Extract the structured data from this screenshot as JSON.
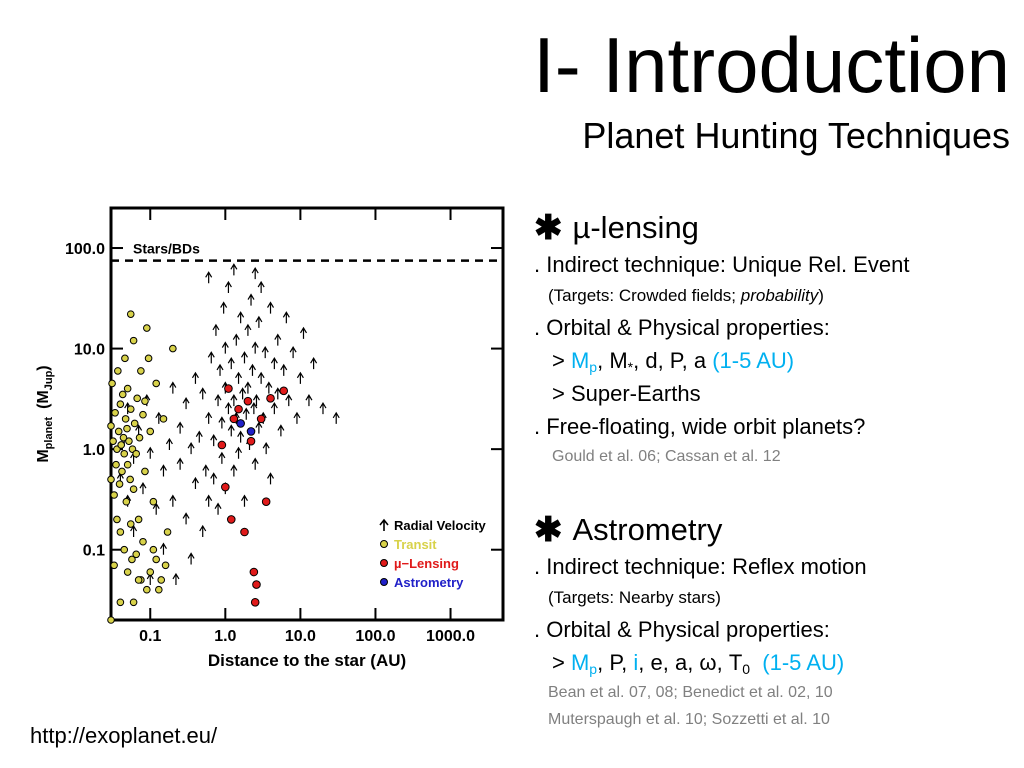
{
  "slide": {
    "title": "I- Introduction",
    "subtitle": "Planet Hunting Techniques",
    "url": "http://exoplanet.eu/"
  },
  "sections": {
    "lensing": {
      "heading": "µ-lensing",
      "l1": ". Indirect technique: Unique Rel. Event",
      "l2_pre": "(Targets: Crowded fields; ",
      "l2_em": "probability",
      "l2_post": ")",
      "l3": ". Orbital & Physical properties:",
      "l4_gt": "> ",
      "l4_m": "M",
      "l4_p": "p",
      "l4_mid": ", M",
      "l4_star": "*",
      "l4_rest": ", d, P, a ",
      "l4_range": "(1-5 AU)",
      "l5": "> Super-Earths",
      "l6": ". Free-floating, wide orbit planets?",
      "ref": "Gould et al. 06; Cassan et al. 12"
    },
    "astrometry": {
      "heading": "Astrometry",
      "l1": ". Indirect technique: Reflex motion",
      "l2": "(Targets: Nearby stars)",
      "l3": ". Orbital & Physical properties:",
      "l4_gt": "> ",
      "l4_m": "M",
      "l4_p": "p",
      "l4_c1": ", P, ",
      "l4_i": "i",
      "l4_c2": ", e, a, ω, T",
      "l4_0": "0",
      "l4_range": "(1-5 AU)",
      "ref1": "Bean et al. 07, 08; Benedict et al. 02, 10",
      "ref2": "Muterspaugh et al. 10; Sozzetti et al. 10"
    }
  },
  "chart_data": {
    "type": "scatter",
    "xlabel": "Distance to the star (AU)",
    "ylabel": "M_planet (M_Jup)",
    "ylabel_main": "M",
    "ylabel_sub": "planet",
    "ylabel_unit": "(M",
    "ylabel_unit_sub": "Jup",
    "ylabel_close": ")",
    "x_scale": "log",
    "y_scale": "log",
    "xlim": [
      0.03,
      5000
    ],
    "ylim": [
      0.02,
      250
    ],
    "x_ticks": [
      {
        "v": 0.1,
        "label": "0.1"
      },
      {
        "v": 1,
        "label": "1.0"
      },
      {
        "v": 10,
        "label": "10.0"
      },
      {
        "v": 100,
        "label": "100.0"
      },
      {
        "v": 1000,
        "label": "1000.0"
      }
    ],
    "y_ticks": [
      {
        "v": 0.1,
        "label": "0.1"
      },
      {
        "v": 1,
        "label": "1.0"
      },
      {
        "v": 10,
        "label": "10.0"
      },
      {
        "v": 100,
        "label": "100.0"
      }
    ],
    "reference_line": {
      "y": 75,
      "label": "Stars/BDs"
    },
    "legend_position": "bottom-right",
    "series": [
      {
        "name": "Radial Velocity",
        "marker": "arrow",
        "color": "#000000",
        "points": [
          [
            0.04,
            0.5
          ],
          [
            0.045,
            1.2
          ],
          [
            0.05,
            0.3
          ],
          [
            0.05,
            2.5
          ],
          [
            0.06,
            0.8
          ],
          [
            0.06,
            0.15
          ],
          [
            0.07,
            1.5
          ],
          [
            0.08,
            0.4
          ],
          [
            0.09,
            3
          ],
          [
            0.1,
            0.9
          ],
          [
            0.1,
            0.05
          ],
          [
            0.12,
            0.25
          ],
          [
            0.13,
            2
          ],
          [
            0.15,
            0.6
          ],
          [
            0.15,
            0.1
          ],
          [
            0.18,
            1.1
          ],
          [
            0.2,
            0.3
          ],
          [
            0.2,
            4
          ],
          [
            0.22,
            0.05
          ],
          [
            0.25,
            1.6
          ],
          [
            0.25,
            0.7
          ],
          [
            0.3,
            0.2
          ],
          [
            0.3,
            2.8
          ],
          [
            0.35,
            1
          ],
          [
            0.35,
            0.08
          ],
          [
            0.4,
            0.45
          ],
          [
            0.4,
            5
          ],
          [
            0.45,
            1.3
          ],
          [
            0.5,
            0.15
          ],
          [
            0.5,
            3.5
          ],
          [
            0.55,
            0.6
          ],
          [
            0.6,
            2
          ],
          [
            0.6,
            0.3
          ],
          [
            0.65,
            8
          ],
          [
            0.7,
            1.2
          ],
          [
            0.7,
            0.5
          ],
          [
            0.75,
            15
          ],
          [
            0.8,
            3
          ],
          [
            0.8,
            0.25
          ],
          [
            0.85,
            6
          ],
          [
            0.9,
            1.8
          ],
          [
            0.9,
            0.8
          ],
          [
            0.95,
            25
          ],
          [
            1.0,
            4
          ],
          [
            1.0,
            0.4
          ],
          [
            1.0,
            10
          ],
          [
            1.1,
            2.5
          ],
          [
            1.1,
            40
          ],
          [
            1.2,
            1.5
          ],
          [
            1.2,
            7
          ],
          [
            1.3,
            3
          ],
          [
            1.3,
            0.6
          ],
          [
            1.4,
            12
          ],
          [
            1.4,
            2
          ],
          [
            1.5,
            5
          ],
          [
            1.5,
            0.9
          ],
          [
            1.6,
            20
          ],
          [
            1.6,
            1.3
          ],
          [
            1.7,
            3.5
          ],
          [
            1.8,
            8
          ],
          [
            1.8,
            0.3
          ],
          [
            1.9,
            2.2
          ],
          [
            2.0,
            15
          ],
          [
            2.0,
            4
          ],
          [
            2.1,
            1.1
          ],
          [
            2.2,
            30
          ],
          [
            2.3,
            6
          ],
          [
            2.4,
            2.5
          ],
          [
            2.5,
            10
          ],
          [
            2.5,
            0.7
          ],
          [
            2.6,
            3
          ],
          [
            2.8,
            18
          ],
          [
            2.8,
            1.6
          ],
          [
            3.0,
            5
          ],
          [
            3.0,
            40
          ],
          [
            3.2,
            2
          ],
          [
            3.4,
            9
          ],
          [
            3.5,
            1
          ],
          [
            3.8,
            4
          ],
          [
            4.0,
            25
          ],
          [
            4.0,
            0.5
          ],
          [
            4.5,
            7
          ],
          [
            4.5,
            2.5
          ],
          [
            5.0,
            12
          ],
          [
            5.0,
            3.5
          ],
          [
            5.5,
            1.5
          ],
          [
            6.0,
            6
          ],
          [
            6.5,
            20
          ],
          [
            7.0,
            3
          ],
          [
            8.0,
            9
          ],
          [
            9.0,
            2
          ],
          [
            10.0,
            5
          ],
          [
            11.0,
            14
          ],
          [
            13.0,
            3
          ],
          [
            15.0,
            7
          ],
          [
            20.0,
            2.5
          ],
          [
            30.0,
            2
          ],
          [
            1.3,
            60
          ],
          [
            0.6,
            50
          ],
          [
            2.5,
            55
          ]
        ]
      },
      {
        "name": "Transit",
        "marker": "circle",
        "color": "#d8d24a",
        "points": [
          [
            0.02,
            0.6
          ],
          [
            0.022,
            1.1
          ],
          [
            0.023,
            0.4
          ],
          [
            0.024,
            2.0
          ],
          [
            0.025,
            0.8
          ],
          [
            0.026,
            1.4
          ],
          [
            0.027,
            0.25
          ],
          [
            0.028,
            3.0
          ],
          [
            0.029,
            0.9
          ],
          [
            0.03,
            1.7
          ],
          [
            0.03,
            0.5
          ],
          [
            0.031,
            4.5
          ],
          [
            0.032,
            1.2
          ],
          [
            0.033,
            0.35
          ],
          [
            0.034,
            2.3
          ],
          [
            0.035,
            0.7
          ],
          [
            0.036,
            1.0
          ],
          [
            0.037,
            6.0
          ],
          [
            0.038,
            1.5
          ],
          [
            0.039,
            0.45
          ],
          [
            0.04,
            2.8
          ],
          [
            0.04,
            0.15
          ],
          [
            0.041,
            1.1
          ],
          [
            0.042,
            0.6
          ],
          [
            0.043,
            3.5
          ],
          [
            0.044,
            1.3
          ],
          [
            0.045,
            0.9
          ],
          [
            0.046,
            8.0
          ],
          [
            0.047,
            2.0
          ],
          [
            0.048,
            0.3
          ],
          [
            0.049,
            1.6
          ],
          [
            0.05,
            0.7
          ],
          [
            0.05,
            4.0
          ],
          [
            0.052,
            1.2
          ],
          [
            0.054,
            0.5
          ],
          [
            0.055,
            2.5
          ],
          [
            0.057,
            0.08
          ],
          [
            0.058,
            1.0
          ],
          [
            0.06,
            12.0
          ],
          [
            0.06,
            0.4
          ],
          [
            0.062,
            1.8
          ],
          [
            0.065,
            0.9
          ],
          [
            0.067,
            3.2
          ],
          [
            0.07,
            0.2
          ],
          [
            0.072,
            1.3
          ],
          [
            0.075,
            0.05
          ],
          [
            0.08,
            2.2
          ],
          [
            0.085,
            0.6
          ],
          [
            0.09,
            16.0
          ],
          [
            0.1,
            1.5
          ],
          [
            0.11,
            0.1
          ],
          [
            0.12,
            4.5
          ],
          [
            0.13,
            0.04
          ],
          [
            0.15,
            2.0
          ],
          [
            0.17,
            0.15
          ],
          [
            0.2,
            10.0
          ],
          [
            0.022,
            0.05
          ],
          [
            0.025,
            0.03
          ],
          [
            0.028,
            0.12
          ],
          [
            0.033,
            0.07
          ],
          [
            0.036,
            0.2
          ],
          [
            0.04,
            0.03
          ],
          [
            0.045,
            0.1
          ],
          [
            0.05,
            0.06
          ],
          [
            0.055,
            0.18
          ],
          [
            0.06,
            0.03
          ],
          [
            0.065,
            0.09
          ],
          [
            0.07,
            0.05
          ],
          [
            0.08,
            0.12
          ],
          [
            0.09,
            0.04
          ],
          [
            0.1,
            0.06
          ],
          [
            0.12,
            0.08
          ],
          [
            0.14,
            0.05
          ],
          [
            0.16,
            0.07
          ],
          [
            0.055,
            22.0
          ],
          [
            0.075,
            6.0
          ],
          [
            0.095,
            8.0
          ],
          [
            0.03,
            0.02
          ],
          [
            0.11,
            0.3
          ],
          [
            0.085,
            3.0
          ]
        ]
      },
      {
        "name": "µ−Lensing",
        "marker": "circle",
        "color": "#e01a1a",
        "points": [
          [
            0.9,
            1.1
          ],
          [
            1.0,
            0.42
          ],
          [
            1.1,
            4.0
          ],
          [
            1.2,
            0.2
          ],
          [
            1.5,
            2.5
          ],
          [
            1.8,
            0.15
          ],
          [
            2.0,
            3.0
          ],
          [
            2.2,
            1.2
          ],
          [
            2.4,
            0.06
          ],
          [
            2.5,
            0.03
          ],
          [
            2.6,
            0.045
          ],
          [
            3.0,
            2.0
          ],
          [
            3.5,
            0.3
          ],
          [
            4.0,
            3.2
          ],
          [
            6.0,
            3.8
          ],
          [
            1.3,
            2.0
          ]
        ]
      },
      {
        "name": "Astrometry",
        "marker": "circle",
        "color": "#2020c8",
        "points": [
          [
            1.6,
            1.8
          ],
          [
            2.2,
            1.5
          ]
        ]
      }
    ]
  }
}
